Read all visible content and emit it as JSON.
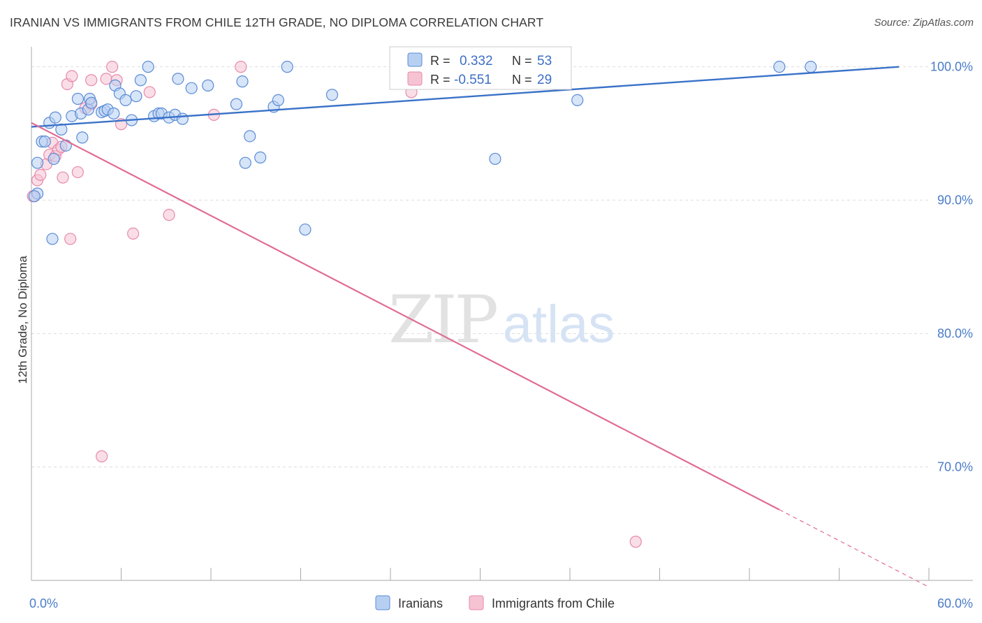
{
  "title": "IRANIAN VS IMMIGRANTS FROM CHILE 12TH GRADE, NO DIPLOMA CORRELATION CHART",
  "source": "Source: ZipAtlas.com",
  "watermark": {
    "zip": "ZIP",
    "atlas": "atlas"
  },
  "legend": {
    "r_label": "R =",
    "n_label": "N =",
    "entries": [
      {
        "r": "0.332",
        "n": "53"
      },
      {
        "r": "-0.551",
        "n": "29"
      }
    ]
  },
  "colors": {
    "blue_fill": "#b7d0f2",
    "blue_stroke": "#5a8bd6",
    "blue_line": "#3a72c8",
    "pink_fill": "#f6c3d3",
    "pink_stroke": "#e78aa8",
    "pink_line": "#e06c95",
    "tick_text": "#4a7cc9",
    "grid": "#dddddd"
  },
  "chart_data": {
    "type": "scatter",
    "title": "IRANIAN VS IMMIGRANTS FROM CHILE 12TH GRADE, NO DIPLOMA CORRELATION CHART",
    "xlabel": "",
    "ylabel": "12th Grade, No Diploma",
    "xlim": [
      0,
      60
    ],
    "ylim": [
      61.5,
      101.5
    ],
    "x_tick_labels": [
      {
        "value": 0,
        "label": "0.0%"
      },
      {
        "value": 60,
        "label": "60.0%"
      }
    ],
    "y_tick_labels": [
      {
        "value": 70,
        "label": "70.0%"
      },
      {
        "value": 80,
        "label": "80.0%"
      },
      {
        "value": 90,
        "label": "90.0%"
      },
      {
        "value": 100,
        "label": "100.0%"
      }
    ],
    "grid": true,
    "legend_position": "top-center",
    "series": [
      {
        "name": "Iranians",
        "r": 0.332,
        "n": 53,
        "trend": {
          "x0": 0,
          "y0": 95.5,
          "x1": 58,
          "y1": 100.0
        },
        "points": [
          [
            0.4,
            90.5
          ],
          [
            0.4,
            92.8
          ],
          [
            0.7,
            94.4
          ],
          [
            0.9,
            94.4
          ],
          [
            1.2,
            95.8
          ],
          [
            1.4,
            87.1
          ],
          [
            1.5,
            93.1
          ],
          [
            1.6,
            96.2
          ],
          [
            2.0,
            95.3
          ],
          [
            2.3,
            94.1
          ],
          [
            2.7,
            96.3
          ],
          [
            3.1,
            97.6
          ],
          [
            3.3,
            96.5
          ],
          [
            3.4,
            94.7
          ],
          [
            3.8,
            96.8
          ],
          [
            3.9,
            97.6
          ],
          [
            4.0,
            97.3
          ],
          [
            4.7,
            96.6
          ],
          [
            4.9,
            96.7
          ],
          [
            5.1,
            96.8
          ],
          [
            5.5,
            96.5
          ],
          [
            5.6,
            98.6
          ],
          [
            5.9,
            98.0
          ],
          [
            6.3,
            97.5
          ],
          [
            6.7,
            96.0
          ],
          [
            7.0,
            97.8
          ],
          [
            7.3,
            99.0
          ],
          [
            7.8,
            100.0
          ],
          [
            8.2,
            96.3
          ],
          [
            8.5,
            96.5
          ],
          [
            8.7,
            96.5
          ],
          [
            9.2,
            96.2
          ],
          [
            9.6,
            96.4
          ],
          [
            9.8,
            99.1
          ],
          [
            10.1,
            96.1
          ],
          [
            10.7,
            98.4
          ],
          [
            11.8,
            98.6
          ],
          [
            13.7,
            97.2
          ],
          [
            14.1,
            98.9
          ],
          [
            14.3,
            92.8
          ],
          [
            14.6,
            94.8
          ],
          [
            15.3,
            93.2
          ],
          [
            16.2,
            97.0
          ],
          [
            16.5,
            97.5
          ],
          [
            17.1,
            100.0
          ],
          [
            18.3,
            87.8
          ],
          [
            20.1,
            97.9
          ],
          [
            31.0,
            93.1
          ],
          [
            35.6,
            100.0
          ],
          [
            36.5,
            97.5
          ],
          [
            50.0,
            100.0
          ],
          [
            52.1,
            100.0
          ],
          [
            0.2,
            90.3
          ]
        ]
      },
      {
        "name": "Immigrants from Chile",
        "r": -0.551,
        "n": 29,
        "trend": {
          "x0": 0,
          "y0": 95.8,
          "x1": 50,
          "y1": 66.8,
          "dash_x1": 60,
          "dash_y1": 61.0
        },
        "points": [
          [
            0.1,
            90.3
          ],
          [
            0.4,
            91.5
          ],
          [
            0.6,
            91.9
          ],
          [
            1.0,
            92.7
          ],
          [
            1.2,
            93.4
          ],
          [
            1.4,
            94.3
          ],
          [
            1.6,
            93.3
          ],
          [
            1.8,
            93.8
          ],
          [
            2.1,
            91.7
          ],
          [
            2.4,
            98.7
          ],
          [
            2.6,
            87.1
          ],
          [
            2.7,
            99.3
          ],
          [
            3.1,
            92.1
          ],
          [
            3.6,
            96.9
          ],
          [
            4.0,
            97.2
          ],
          [
            4.0,
            99.0
          ],
          [
            4.7,
            70.8
          ],
          [
            5.0,
            99.1
          ],
          [
            5.4,
            100.0
          ],
          [
            5.7,
            99.0
          ],
          [
            6.0,
            95.7
          ],
          [
            6.8,
            87.5
          ],
          [
            7.9,
            98.1
          ],
          [
            9.2,
            88.9
          ],
          [
            12.2,
            96.4
          ],
          [
            14.0,
            100.0
          ],
          [
            25.4,
            98.1
          ],
          [
            40.4,
            64.4
          ],
          [
            2.0,
            94.0
          ]
        ]
      }
    ]
  }
}
